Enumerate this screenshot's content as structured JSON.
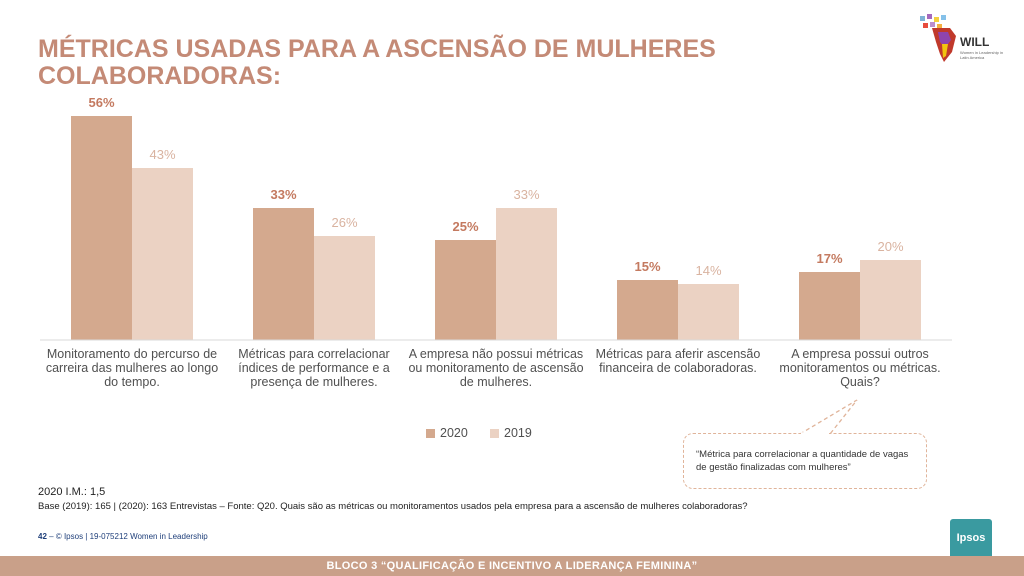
{
  "slide": {
    "title": "MÉTRICAS USADAS PARA A ASCENSÃO DE MULHERES COLABORADORAS:",
    "logo": {
      "name": "WILL",
      "subtitle": "Women in Leadership in Latin America"
    },
    "callout_text": "“Métrica para correlacionar a quantidade de vagas de gestão finalizadas com mulheres”",
    "im_note": "2020 I.M.: 1,5",
    "base_note": "Base (2019): 165 | (2020): 163 Entrevistas – Fonte: Q20. Quais são as métricas ou monitoramentos usados pela empresa para a ascensão de mulheres colaboradoras?",
    "footer": {
      "page": "42",
      "separator": "–",
      "text": "© Ipsos | 19-075212 Women in Leadership"
    },
    "ipsos_label": "Ipsos",
    "bottom_bar": "BLOCO 3 “QUALIFICAÇÃO E INCENTIVO A LIDERANÇA  FEMININA”"
  },
  "colors": {
    "title": "#c48a76",
    "series_2020": "#d4a98e",
    "series_2019": "#ebd2c3",
    "label_2020": "#c47a60",
    "label_2019": "#d9b3a0",
    "bar": "#c9a089"
  },
  "chart_data": {
    "type": "bar",
    "categories": [
      "Monitoramento do percurso de carreira das mulheres ao longo do tempo.",
      "Métricas para correlacionar índices de performance e a presença de mulheres.",
      "A empresa não possui métricas ou monitoramento de ascensão de mulheres.",
      "Métricas para aferir ascensão financeira de colaboradoras.",
      "A empresa possui outros monitoramentos ou métricas. Quais?"
    ],
    "series": [
      {
        "name": "2020",
        "values": [
          56,
          33,
          25,
          15,
          17
        ],
        "labels": [
          "56%",
          "33%",
          "25%",
          "15%",
          "17%"
        ]
      },
      {
        "name": "2019",
        "values": [
          43,
          26,
          33,
          14,
          20
        ],
        "labels": [
          "43%",
          "26%",
          "33%",
          "14%",
          "20%"
        ]
      }
    ],
    "ylim": [
      0,
      60
    ],
    "legend": "bottom-center",
    "grid": false
  }
}
